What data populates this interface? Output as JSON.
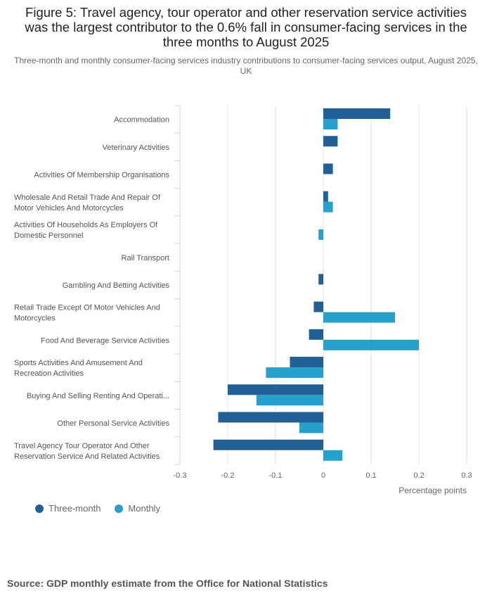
{
  "header": {
    "title": "Figure 5: Travel agency, tour operator and other reservation service activities was the largest contributor to the 0.6% fall in consumer-facing services in the three months to August 2025",
    "subtitle": "Three-month and monthly consumer-facing services industry contributions to consumer-facing services output, August 2025, UK"
  },
  "source": "Source: GDP monthly estimate from the Office for National Statistics",
  "chart_data": {
    "type": "bar",
    "orientation": "horizontal",
    "title": "Figure 5: Travel agency, tour operator and other reservation service activities was the largest contributor to the 0.6% fall in consumer-facing services in the three months to August 2025",
    "subtitle": "Three-month and monthly consumer-facing services industry contributions to consumer-facing services output, August 2025, UK",
    "xlabel": "Percentage points",
    "ylabel": "",
    "xlim": [
      -0.3,
      0.3
    ],
    "xticks": [
      -0.3,
      -0.2,
      -0.1,
      0,
      0.1,
      0.2,
      0.3
    ],
    "xtick_labels": [
      "-0.3",
      "-0.2",
      "-0.1",
      "0",
      "0.1",
      "0.2",
      "0.3"
    ],
    "grid": true,
    "legend_position": "bottom-left",
    "categories": [
      [
        "Accommodation"
      ],
      [
        "Veterinary Activities"
      ],
      [
        "Activities Of Membership Organisations"
      ],
      [
        "Wholesale And Retail Trade And Repair Of",
        "Motor Vehicles And Motorcycles"
      ],
      [
        "Activities Of Households As Employers Of",
        "Domestic Personnel"
      ],
      [
        "Rail Transport"
      ],
      [
        "Gambling And Betting Activities"
      ],
      [
        "Retail Trade Except Of Motor Vehicles And",
        "Motorcycles"
      ],
      [
        "Food And Beverage Service Activities"
      ],
      [
        "Sports Activities And Amusement And",
        "Recreation Activities"
      ],
      [
        "Buying And Selling Renting And Operati..."
      ],
      [
        "Other Personal Service Activities"
      ],
      [
        "Travel Agency Tour Operator And Other",
        "Reservation Service And Related Activities"
      ]
    ],
    "series": [
      {
        "name": "Three-month",
        "color": "#206095",
        "values": [
          0.14,
          0.03,
          0.02,
          0.01,
          0,
          0,
          -0.01,
          -0.02,
          -0.03,
          -0.07,
          -0.2,
          -0.22,
          -0.23
        ]
      },
      {
        "name": "Monthly",
        "color": "#27a0cc",
        "values": [
          0.03,
          0,
          0,
          0.02,
          -0.01,
          0,
          0,
          0.15,
          0.2,
          -0.12,
          -0.14,
          -0.05,
          0.04
        ]
      }
    ]
  }
}
